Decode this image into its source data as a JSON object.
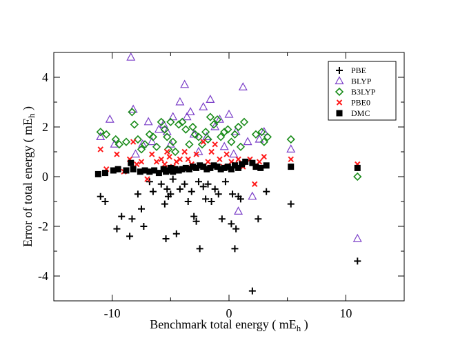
{
  "chart_data": {
    "type": "scatter",
    "title": "",
    "xlabel": "Benchmark total energy ( mE",
    "xlabel_sub": "h",
    "xlabel_close": " )",
    "ylabel": "Error of total energy ( mE",
    "ylabel_sub": "h",
    "ylabel_close": " )",
    "xlim": [
      -15,
      15
    ],
    "ylim": [
      -5,
      5
    ],
    "xticks": [
      -10,
      0,
      10
    ],
    "xtick_labels": [
      "-10",
      "0",
      "10"
    ],
    "yticks": [
      -4,
      -2,
      0,
      2,
      4
    ],
    "ytick_labels": [
      "-4",
      "-2",
      "0",
      "2",
      "4"
    ],
    "grid": false,
    "legend_position": "top-right",
    "series": [
      {
        "name": "PBE",
        "marker": "plus",
        "color": "#000000",
        "x": [
          -11.0,
          -10.6,
          -9.6,
          -9.2,
          -8.5,
          -8.3,
          -7.8,
          -7.5,
          -7.3,
          -6.8,
          -6.5,
          -5.8,
          -5.5,
          -5.4,
          -5.3,
          -5.2,
          -5.0,
          -4.8,
          -4.5,
          -4.2,
          -3.8,
          -3.5,
          -3.2,
          -3.0,
          -2.8,
          -2.6,
          -2.5,
          -2.2,
          -2.0,
          -1.8,
          -1.5,
          -1.2,
          -0.9,
          -0.6,
          -0.3,
          0.2,
          0.3,
          0.5,
          0.6,
          0.8,
          1.0,
          2.0,
          2.5,
          3.2,
          5.3,
          11.0
        ],
        "y": [
          -0.8,
          -1.0,
          -2.1,
          -1.6,
          -2.4,
          -1.7,
          -0.7,
          -1.3,
          -2.0,
          -0.2,
          -0.6,
          -0.3,
          -1.1,
          -2.5,
          -0.5,
          -0.8,
          -0.7,
          -0.1,
          -2.3,
          -0.5,
          -0.3,
          -1.0,
          -0.6,
          -1.6,
          -1.8,
          -0.2,
          -2.9,
          -0.4,
          -0.9,
          -0.3,
          -1.0,
          -0.5,
          -0.7,
          -1.7,
          -0.2,
          -1.9,
          -0.7,
          -2.9,
          -2.1,
          -0.8,
          -0.9,
          -4.6,
          -1.7,
          -0.6,
          -1.1,
          -3.4
        ]
      },
      {
        "name": "BLYP",
        "marker": "triangle",
        "color": "#7b3fc8",
        "x": [
          -11.0,
          -10.2,
          -9.8,
          -8.4,
          -8.2,
          -8.0,
          -7.4,
          -6.9,
          -6.6,
          -6.0,
          -5.6,
          -5.3,
          -5.0,
          -4.8,
          -4.2,
          -3.8,
          -3.6,
          -3.3,
          -3.0,
          -2.6,
          -2.2,
          -1.9,
          -1.6,
          -1.2,
          -0.8,
          -0.4,
          0.0,
          0.4,
          0.6,
          0.8,
          1.2,
          1.6,
          2.0,
          2.6,
          3.0,
          5.3,
          11.0
        ],
        "y": [
          1.6,
          2.3,
          1.3,
          4.8,
          2.7,
          0.9,
          1.3,
          2.2,
          1.4,
          1.9,
          2.1,
          1.8,
          1.3,
          2.4,
          3.0,
          3.7,
          2.4,
          2.6,
          1.7,
          1.0,
          2.8,
          1.6,
          3.1,
          2.0,
          2.3,
          1.2,
          2.5,
          0.9,
          1.8,
          -1.4,
          3.6,
          1.4,
          -0.8,
          1.5,
          1.8,
          1.1,
          -2.5
        ]
      },
      {
        "name": "B3LYP",
        "marker": "diamond",
        "color": "#1a8c1a",
        "x": [
          -11.0,
          -10.5,
          -9.7,
          -9.4,
          -8.8,
          -8.3,
          -8.1,
          -7.8,
          -7.5,
          -7.2,
          -6.8,
          -6.5,
          -6.2,
          -5.8,
          -5.5,
          -5.3,
          -5.2,
          -5.0,
          -4.8,
          -4.6,
          -4.3,
          -4.0,
          -3.7,
          -3.4,
          -3.1,
          -2.9,
          -2.6,
          -2.3,
          -2.0,
          -1.8,
          -1.6,
          -1.3,
          -1.0,
          -0.7,
          -0.4,
          -0.1,
          0.2,
          0.5,
          0.8,
          1.0,
          1.3,
          2.3,
          2.8,
          3.0,
          3.3,
          5.3,
          11.0
        ],
        "y": [
          1.8,
          1.7,
          1.5,
          1.3,
          1.4,
          2.6,
          2.1,
          1.5,
          1.1,
          1.3,
          1.7,
          1.6,
          1.2,
          2.2,
          1.9,
          1.6,
          1.1,
          2.2,
          1.4,
          1.0,
          2.1,
          2.2,
          1.9,
          1.3,
          2.0,
          1.7,
          1.6,
          1.3,
          1.8,
          1.5,
          2.4,
          2.1,
          2.3,
          1.6,
          1.8,
          1.9,
          1.4,
          1.7,
          2.0,
          1.2,
          2.2,
          1.7,
          1.8,
          1.4,
          1.6,
          1.5,
          0.0
        ]
      },
      {
        "name": "PBE0",
        "marker": "cross",
        "color": "#ff1a1a",
        "x": [
          -11.0,
          -10.5,
          -9.6,
          -9.0,
          -8.5,
          -8.2,
          -7.9,
          -7.5,
          -7.0,
          -6.6,
          -6.2,
          -5.8,
          -5.5,
          -5.3,
          -5.1,
          -4.8,
          -4.5,
          -4.2,
          -3.8,
          -3.5,
          -3.2,
          -2.8,
          -2.5,
          -2.2,
          -1.8,
          -1.5,
          -1.2,
          -0.8,
          -0.5,
          -0.2,
          0.2,
          0.5,
          0.8,
          1.2,
          1.8,
          2.2,
          2.6,
          3.0,
          5.3,
          11.0
        ],
        "y": [
          1.1,
          0.3,
          0.9,
          0.2,
          0.7,
          1.4,
          0.5,
          0.6,
          -0.1,
          0.9,
          0.6,
          0.7,
          0.5,
          1.0,
          0.8,
          0.4,
          0.6,
          0.7,
          1.0,
          0.7,
          0.5,
          0.9,
          0.4,
          1.4,
          0.6,
          1.0,
          1.3,
          0.7,
          0.4,
          0.9,
          0.6,
          0.5,
          0.7,
          0.4,
          0.7,
          -0.3,
          0.6,
          0.8,
          0.7,
          0.5
        ]
      },
      {
        "name": "DMC",
        "marker": "square",
        "color": "#000000",
        "x": [
          -11.2,
          -10.6,
          -9.9,
          -9.5,
          -8.8,
          -8.4,
          -8.2,
          -7.6,
          -7.2,
          -6.8,
          -6.4,
          -6.0,
          -5.6,
          -5.4,
          -5.2,
          -5.0,
          -4.8,
          -4.6,
          -4.3,
          -4.0,
          -3.7,
          -3.4,
          -3.1,
          -2.8,
          -2.5,
          -2.2,
          -1.9,
          -1.6,
          -1.3,
          -1.0,
          -0.7,
          -0.4,
          -0.1,
          0.2,
          0.5,
          0.8,
          1.1,
          1.4,
          2.0,
          2.3,
          2.7,
          3.2,
          5.3,
          11.0
        ],
        "y": [
          0.1,
          0.15,
          0.25,
          0.3,
          0.25,
          0.55,
          0.3,
          0.2,
          0.25,
          0.2,
          0.25,
          0.15,
          0.3,
          0.2,
          0.25,
          0.35,
          0.2,
          0.3,
          0.25,
          0.3,
          0.35,
          0.3,
          0.4,
          0.35,
          0.45,
          0.4,
          0.3,
          0.35,
          0.45,
          0.4,
          0.3,
          0.35,
          0.4,
          0.3,
          0.45,
          0.35,
          0.5,
          0.6,
          0.55,
          0.4,
          0.35,
          0.45,
          0.4,
          0.35
        ]
      }
    ]
  }
}
